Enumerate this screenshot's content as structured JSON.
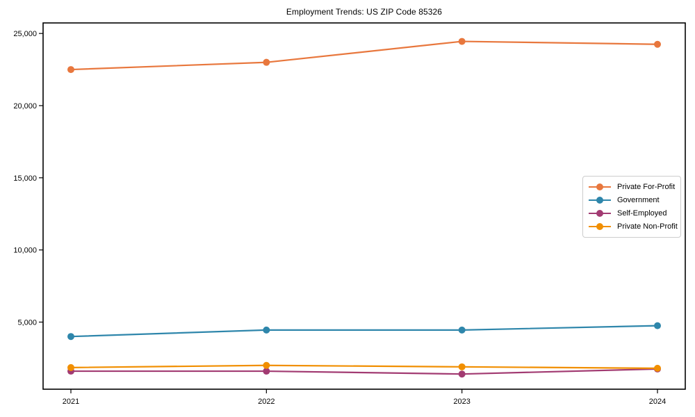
{
  "title": "Employment Trends: US ZIP Code 85326",
  "chart_data": {
    "type": "line",
    "title": "Employment Trends: US ZIP Code 85326",
    "xlabel": "",
    "ylabel": "",
    "categories": [
      "2021",
      "2022",
      "2023",
      "2024"
    ],
    "series": [
      {
        "name": "Private For-Profit",
        "color": "#E8773D",
        "values": [
          22500,
          23000,
          24450,
          24250
        ]
      },
      {
        "name": "Government",
        "color": "#2E86AB",
        "values": [
          4000,
          4450,
          4450,
          4750
        ]
      },
      {
        "name": "Self-Employed",
        "color": "#A23B72",
        "values": [
          1600,
          1600,
          1400,
          1750
        ]
      },
      {
        "name": "Private Non-Profit",
        "color": "#F18F01",
        "values": [
          1850,
          2000,
          1900,
          1800
        ]
      }
    ],
    "yticks": [
      5000,
      10000,
      15000,
      20000,
      25000
    ],
    "ytick_labels": [
      "5,000",
      "10,000",
      "15,000",
      "20,000",
      "25,000"
    ],
    "ylim": [
      350,
      25730
    ],
    "grid": false,
    "legend_position": "center-right",
    "marker": "circle",
    "axis_color": "#000000",
    "background_color": "#ffffff"
  }
}
